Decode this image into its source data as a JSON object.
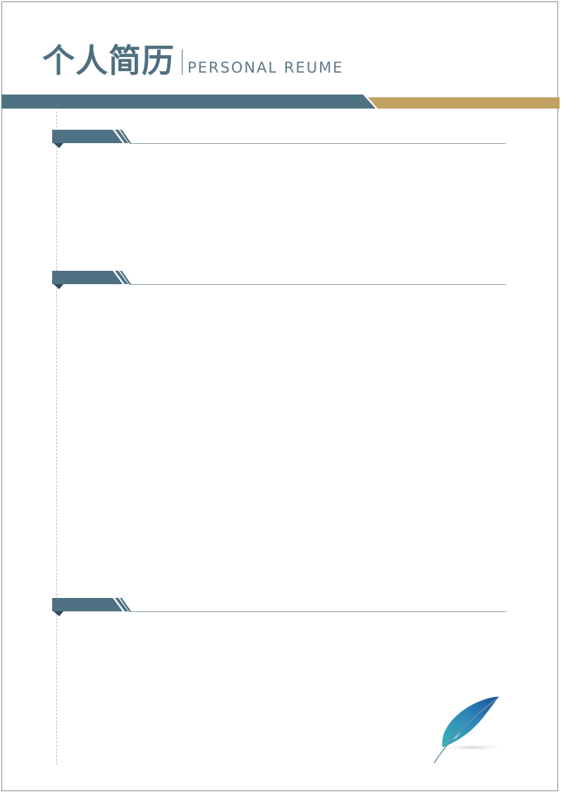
{
  "header": {
    "title_cn": "个人简历",
    "title_en": "PERSONAL REUME"
  },
  "colors": {
    "primary": "#4e7284",
    "accent": "#c1a264",
    "divider": "#8f9ba2"
  },
  "sections": [
    {
      "label": ""
    },
    {
      "label": ""
    },
    {
      "label": ""
    }
  ],
  "decorations": {
    "corner": "feather-icon"
  }
}
